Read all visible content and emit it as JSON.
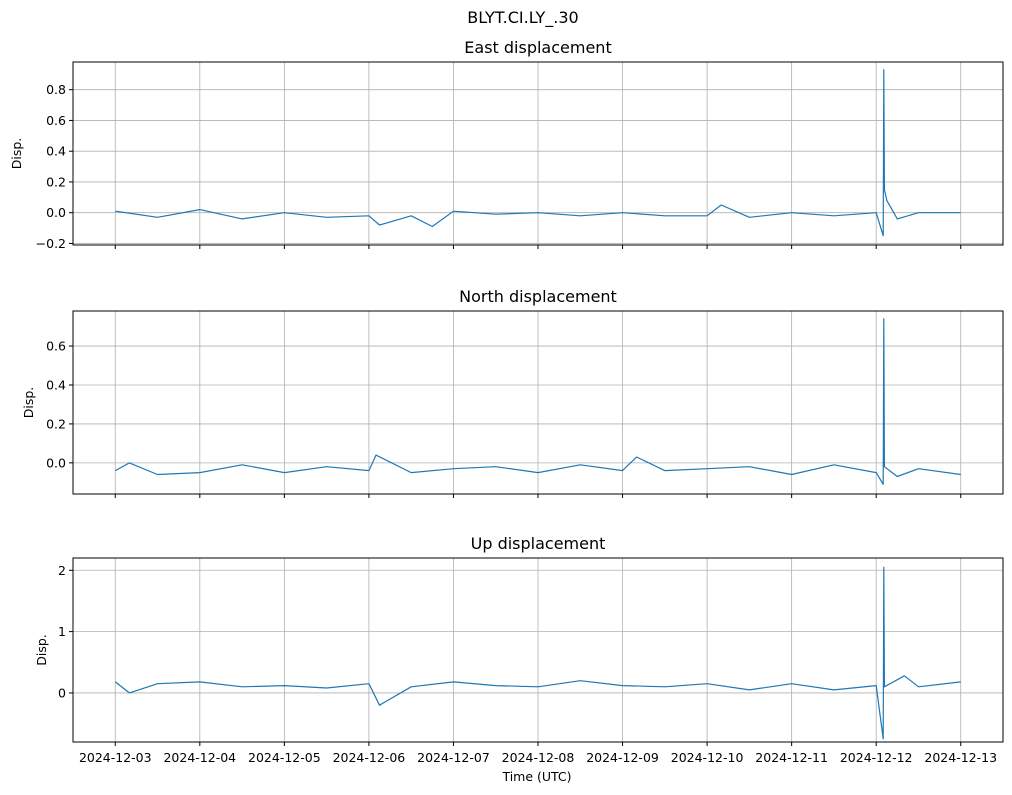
{
  "figure": {
    "suptitle": "BLYT.CI.LY_.30",
    "xlabel": "Time (UTC)"
  },
  "chart_data": [
    {
      "type": "line",
      "title": "East displacement",
      "ylabel": "Disp.",
      "ylim": [
        -0.21,
        0.98
      ],
      "yticks": [
        -0.2,
        0.0,
        0.2,
        0.4,
        0.6,
        0.8
      ],
      "ytick_labels": [
        "−0.2",
        "0.0",
        "0.2",
        "0.4",
        "0.6",
        "0.8"
      ],
      "xlim": [
        "2024-12-02T12:00",
        "2024-12-13T12:00"
      ],
      "grid": true,
      "series_color": "#1f77b4",
      "series": [
        {
          "x": [
            "2024-12-03T00:00",
            "2024-12-03T12:00",
            "2024-12-04T00:00",
            "2024-12-04T12:00",
            "2024-12-05T00:00",
            "2024-12-05T12:00",
            "2024-12-06T00:00",
            "2024-12-06T03:00",
            "2024-12-06T12:00",
            "2024-12-06T18:00",
            "2024-12-07T00:00",
            "2024-12-07T12:00",
            "2024-12-08T00:00",
            "2024-12-08T12:00",
            "2024-12-09T00:00",
            "2024-12-09T12:00",
            "2024-12-10T00:00",
            "2024-12-10T04:00",
            "2024-12-10T12:00",
            "2024-12-11T00:00",
            "2024-12-11T12:00",
            "2024-12-12T00:00",
            "2024-12-12T02:00",
            "2024-12-12T02:10",
            "2024-12-12T02:20",
            "2024-12-12T03:00",
            "2024-12-12T06:00",
            "2024-12-12T12:00",
            "2024-12-13T00:00"
          ],
          "y": [
            0.01,
            -0.03,
            0.02,
            -0.04,
            0.0,
            -0.03,
            -0.02,
            -0.08,
            -0.02,
            -0.09,
            0.01,
            -0.01,
            0.0,
            -0.02,
            0.0,
            -0.02,
            -0.02,
            0.05,
            -0.03,
            0.0,
            -0.02,
            0.0,
            -0.15,
            0.93,
            0.15,
            0.08,
            -0.04,
            0.0,
            0.0
          ]
        }
      ]
    },
    {
      "type": "line",
      "title": "North displacement",
      "ylabel": "Disp.",
      "ylim": [
        -0.16,
        0.78
      ],
      "yticks": [
        0.0,
        0.2,
        0.4,
        0.6
      ],
      "ytick_labels": [
        "0.0",
        "0.2",
        "0.4",
        "0.6"
      ],
      "xlim": [
        "2024-12-02T12:00",
        "2024-12-13T12:00"
      ],
      "grid": true,
      "series_color": "#1f77b4",
      "series": [
        {
          "x": [
            "2024-12-03T00:00",
            "2024-12-03T04:00",
            "2024-12-03T12:00",
            "2024-12-04T00:00",
            "2024-12-04T12:00",
            "2024-12-05T00:00",
            "2024-12-05T12:00",
            "2024-12-06T00:00",
            "2024-12-06T02:00",
            "2024-12-06T12:00",
            "2024-12-07T00:00",
            "2024-12-07T12:00",
            "2024-12-08T00:00",
            "2024-12-08T12:00",
            "2024-12-09T00:00",
            "2024-12-09T04:00",
            "2024-12-09T12:00",
            "2024-12-10T00:00",
            "2024-12-10T12:00",
            "2024-12-11T00:00",
            "2024-12-11T12:00",
            "2024-12-12T00:00",
            "2024-12-12T02:00",
            "2024-12-12T02:10",
            "2024-12-12T02:20",
            "2024-12-12T06:00",
            "2024-12-12T12:00",
            "2024-12-13T00:00"
          ],
          "y": [
            -0.04,
            0.0,
            -0.06,
            -0.05,
            -0.01,
            -0.05,
            -0.02,
            -0.04,
            0.04,
            -0.05,
            -0.03,
            -0.02,
            -0.05,
            -0.01,
            -0.04,
            0.03,
            -0.04,
            -0.03,
            -0.02,
            -0.06,
            -0.01,
            -0.05,
            -0.11,
            0.74,
            -0.02,
            -0.07,
            -0.03,
            -0.06
          ]
        }
      ]
    },
    {
      "type": "line",
      "title": "Up displacement",
      "ylabel": "Disp.",
      "ylim": [
        -0.8,
        2.2
      ],
      "yticks": [
        0,
        1,
        2
      ],
      "ytick_labels": [
        "0",
        "1",
        "2"
      ],
      "xlim": [
        "2024-12-02T12:00",
        "2024-12-13T12:00"
      ],
      "grid": true,
      "series_color": "#1f77b4",
      "series": [
        {
          "x": [
            "2024-12-03T00:00",
            "2024-12-03T04:00",
            "2024-12-03T12:00",
            "2024-12-04T00:00",
            "2024-12-04T12:00",
            "2024-12-05T00:00",
            "2024-12-05T12:00",
            "2024-12-06T00:00",
            "2024-12-06T03:00",
            "2024-12-06T12:00",
            "2024-12-07T00:00",
            "2024-12-07T12:00",
            "2024-12-08T00:00",
            "2024-12-08T12:00",
            "2024-12-09T00:00",
            "2024-12-09T12:00",
            "2024-12-10T00:00",
            "2024-12-10T12:00",
            "2024-12-11T00:00",
            "2024-12-11T12:00",
            "2024-12-12T00:00",
            "2024-12-12T02:00",
            "2024-12-12T02:10",
            "2024-12-12T02:20",
            "2024-12-12T08:00",
            "2024-12-12T12:00",
            "2024-12-13T00:00"
          ],
          "y": [
            0.18,
            0.0,
            0.15,
            0.18,
            0.1,
            0.12,
            0.08,
            0.15,
            -0.2,
            0.1,
            0.18,
            0.12,
            0.1,
            0.2,
            0.12,
            0.1,
            0.15,
            0.05,
            0.15,
            0.05,
            0.12,
            -0.75,
            2.05,
            0.1,
            0.28,
            0.1,
            0.18
          ]
        }
      ]
    }
  ],
  "x_axis": {
    "ticks": [
      "2024-12-03",
      "2024-12-04",
      "2024-12-05",
      "2024-12-06",
      "2024-12-07",
      "2024-12-08",
      "2024-12-09",
      "2024-12-10",
      "2024-12-11",
      "2024-12-12",
      "2024-12-13"
    ]
  }
}
